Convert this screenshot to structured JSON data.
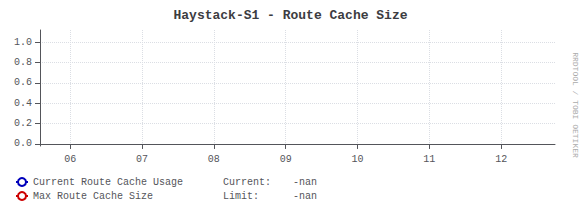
{
  "chart_data": {
    "type": "line",
    "title": "Haystack-S1 - Route Cache Size",
    "x": [],
    "series": [
      {
        "name": "Current Route Cache Usage",
        "color": "#0000bb",
        "values": [],
        "stat_label": "Current:",
        "stat_value": "-nan"
      },
      {
        "name": "Max Route Cache Size",
        "color": "#cc0000",
        "values": [],
        "stat_label": "Limit:",
        "stat_value": "-nan"
      }
    ],
    "xlim": [
      5.58,
      12.75
    ],
    "xticks": [
      {
        "value": 6,
        "label": "06"
      },
      {
        "value": 7,
        "label": "07"
      },
      {
        "value": 8,
        "label": "08"
      },
      {
        "value": 9,
        "label": "09"
      },
      {
        "value": 10,
        "label": "10"
      },
      {
        "value": 11,
        "label": "11"
      },
      {
        "value": 12,
        "label": "12"
      }
    ],
    "ylim": [
      -0.02,
      1.12
    ],
    "yticks": [
      {
        "value": 0,
        "label": "0.0"
      },
      0.2,
      0.4,
      0.6,
      0.8,
      {
        "value": 1,
        "label": "1.0"
      }
    ],
    "grid": true,
    "legend": "lower left",
    "annotations": [
      "RRDTOOL / TOBI OETIKER"
    ]
  }
}
